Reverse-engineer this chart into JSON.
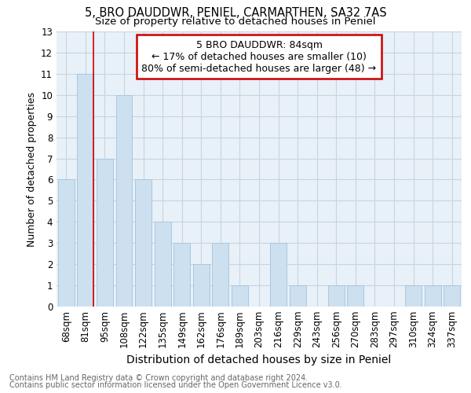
{
  "title": "5, BRO DAUDDWR, PENIEL, CARMARTHEN, SA32 7AS",
  "subtitle": "Size of property relative to detached houses in Peniel",
  "xlabel": "Distribution of detached houses by size in Peniel",
  "ylabel": "Number of detached properties",
  "categories": [
    "68sqm",
    "81sqm",
    "95sqm",
    "108sqm",
    "122sqm",
    "135sqm",
    "149sqm",
    "162sqm",
    "176sqm",
    "189sqm",
    "203sqm",
    "216sqm",
    "229sqm",
    "243sqm",
    "256sqm",
    "270sqm",
    "283sqm",
    "297sqm",
    "310sqm",
    "324sqm",
    "337sqm"
  ],
  "values": [
    6,
    11,
    7,
    10,
    6,
    4,
    3,
    2,
    3,
    1,
    0,
    3,
    1,
    0,
    1,
    1,
    0,
    0,
    1,
    1,
    1
  ],
  "bar_color": "#cce0f0",
  "bar_edge_color": "#aac8e0",
  "ylim": [
    0,
    13
  ],
  "yticks": [
    0,
    1,
    2,
    3,
    4,
    5,
    6,
    7,
    8,
    9,
    10,
    11,
    12,
    13
  ],
  "annotation_box_text": "5 BRO DAUDDWR: 84sqm\n← 17% of detached houses are smaller (10)\n80% of semi-detached houses are larger (48) →",
  "annotation_box_color": "#cc0000",
  "vline_x": 1.42,
  "vline_color": "#cc0000",
  "grid_color": "#c8d4e0",
  "background_color": "#e8f0f8",
  "footer_line1": "Contains HM Land Registry data © Crown copyright and database right 2024.",
  "footer_line2": "Contains public sector information licensed under the Open Government Licence v3.0.",
  "title_fontsize": 10.5,
  "subtitle_fontsize": 9.5,
  "xlabel_fontsize": 10,
  "ylabel_fontsize": 9,
  "tick_fontsize": 8.5,
  "footer_fontsize": 7,
  "annotation_fontsize": 9
}
